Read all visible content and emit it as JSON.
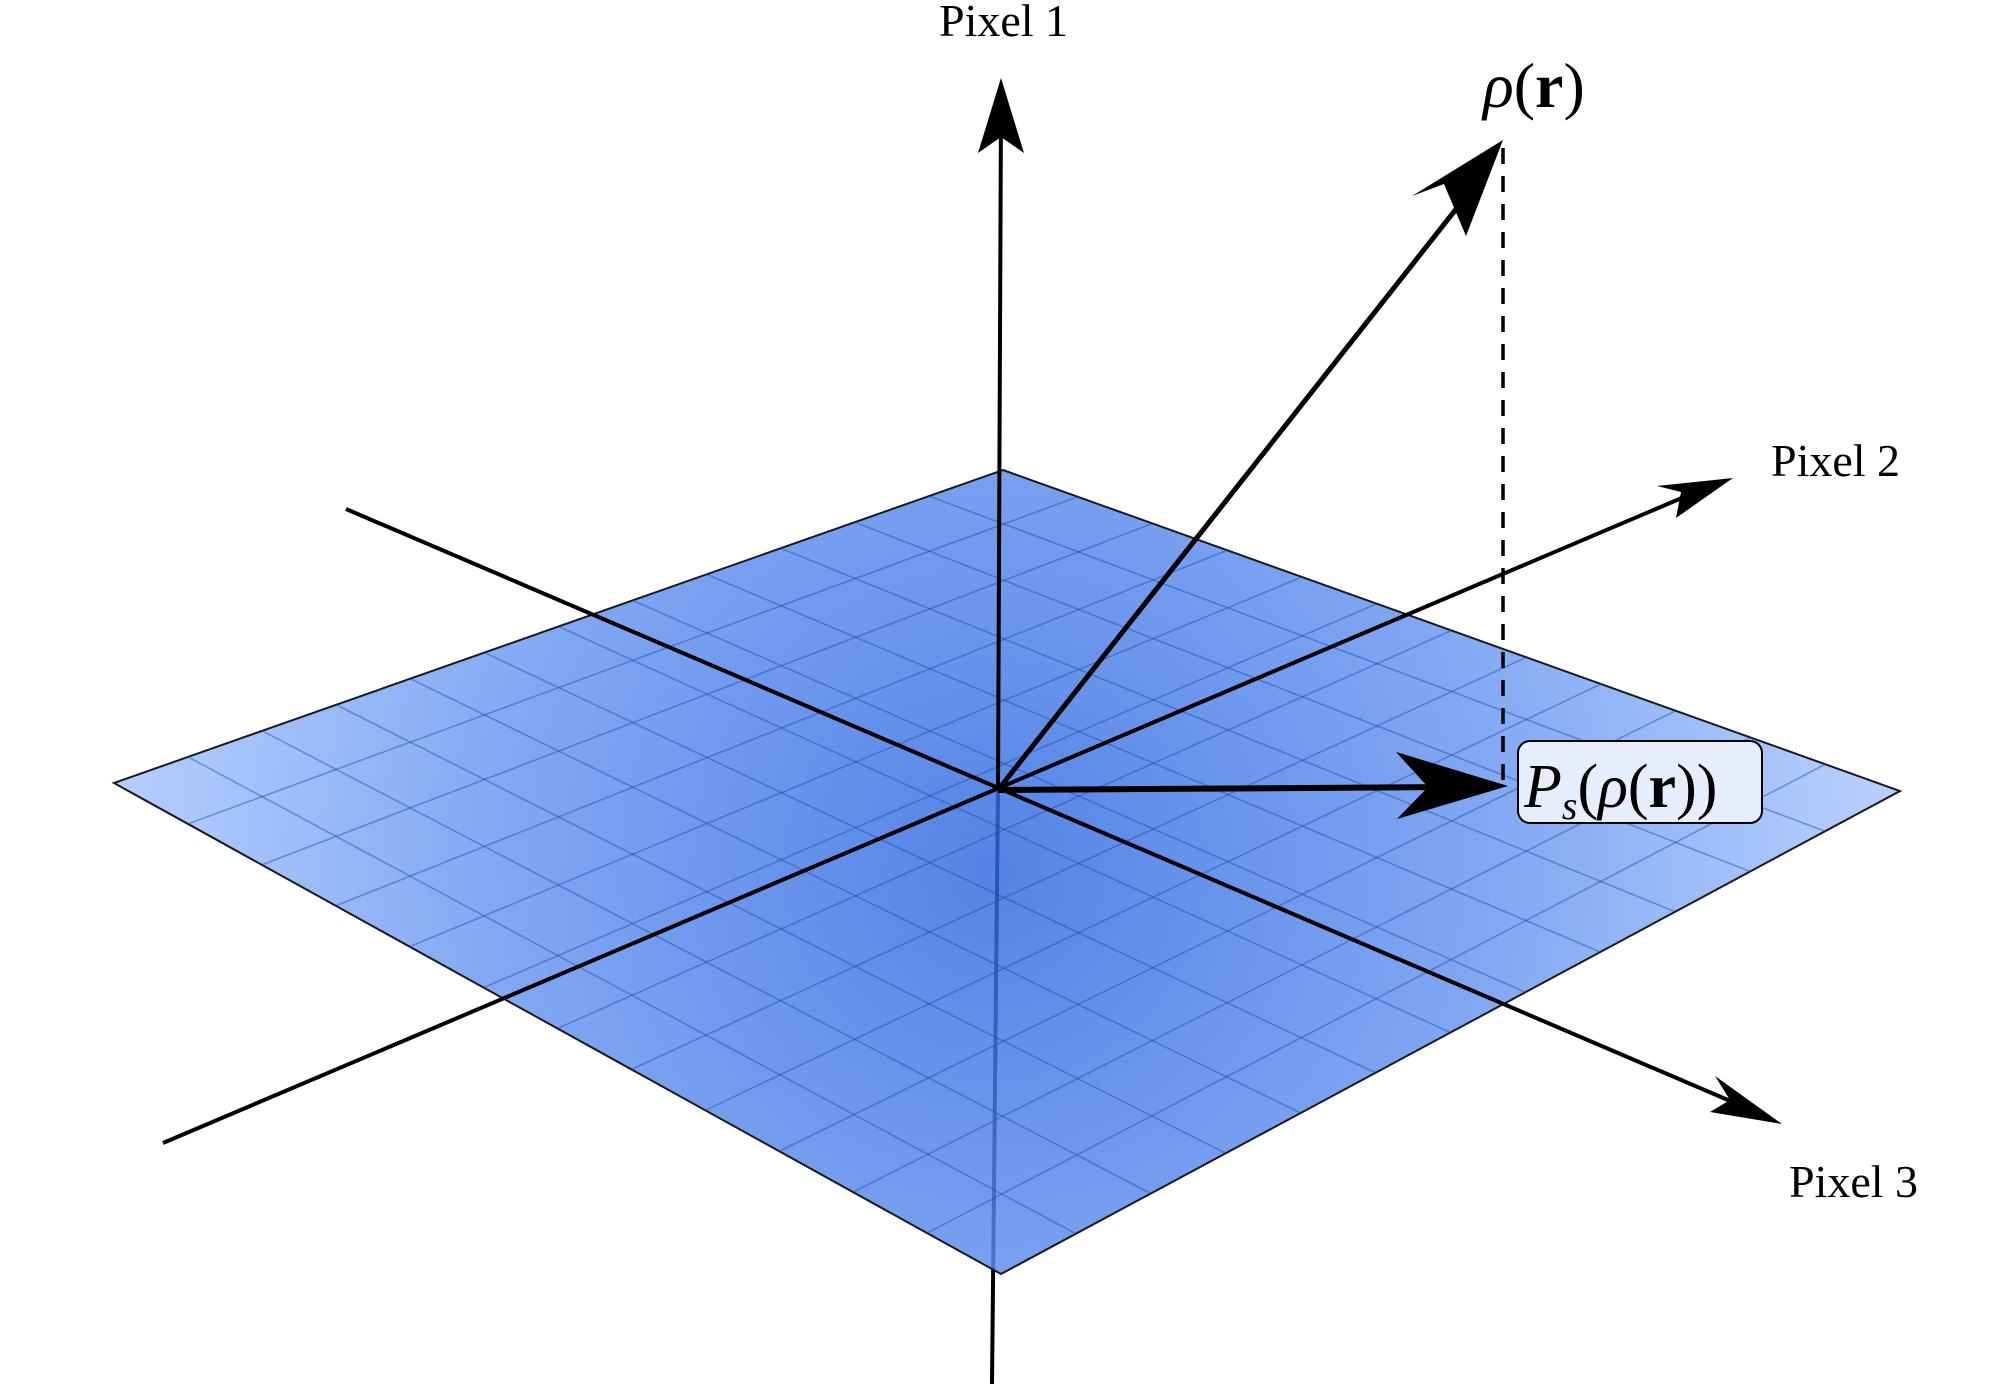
{
  "axes": {
    "pixel1": "Pixel 1",
    "pixel2": "Pixel 2",
    "pixel3": "Pixel 3"
  },
  "vectors": {
    "rho": {
      "symbol": "ρ",
      "open_paren": "(",
      "bold_r": "r",
      "close_paren": ")"
    },
    "projection": {
      "operator": "P",
      "subscript": "s",
      "open_paren_outer": "(",
      "symbol": "ρ",
      "open_paren_inner": "(",
      "bold_r": "r",
      "close_paren_inner": ")",
      "close_paren_outer": ")"
    }
  },
  "colors": {
    "plane_center": "#2f6be0",
    "plane_edge": "#9dbdfc",
    "grid_line": "#1f4ea8",
    "axis": "#000000",
    "label_box_fill": "#e6eefc"
  },
  "icons": {
    "arrowhead": "arrowhead-icon"
  }
}
